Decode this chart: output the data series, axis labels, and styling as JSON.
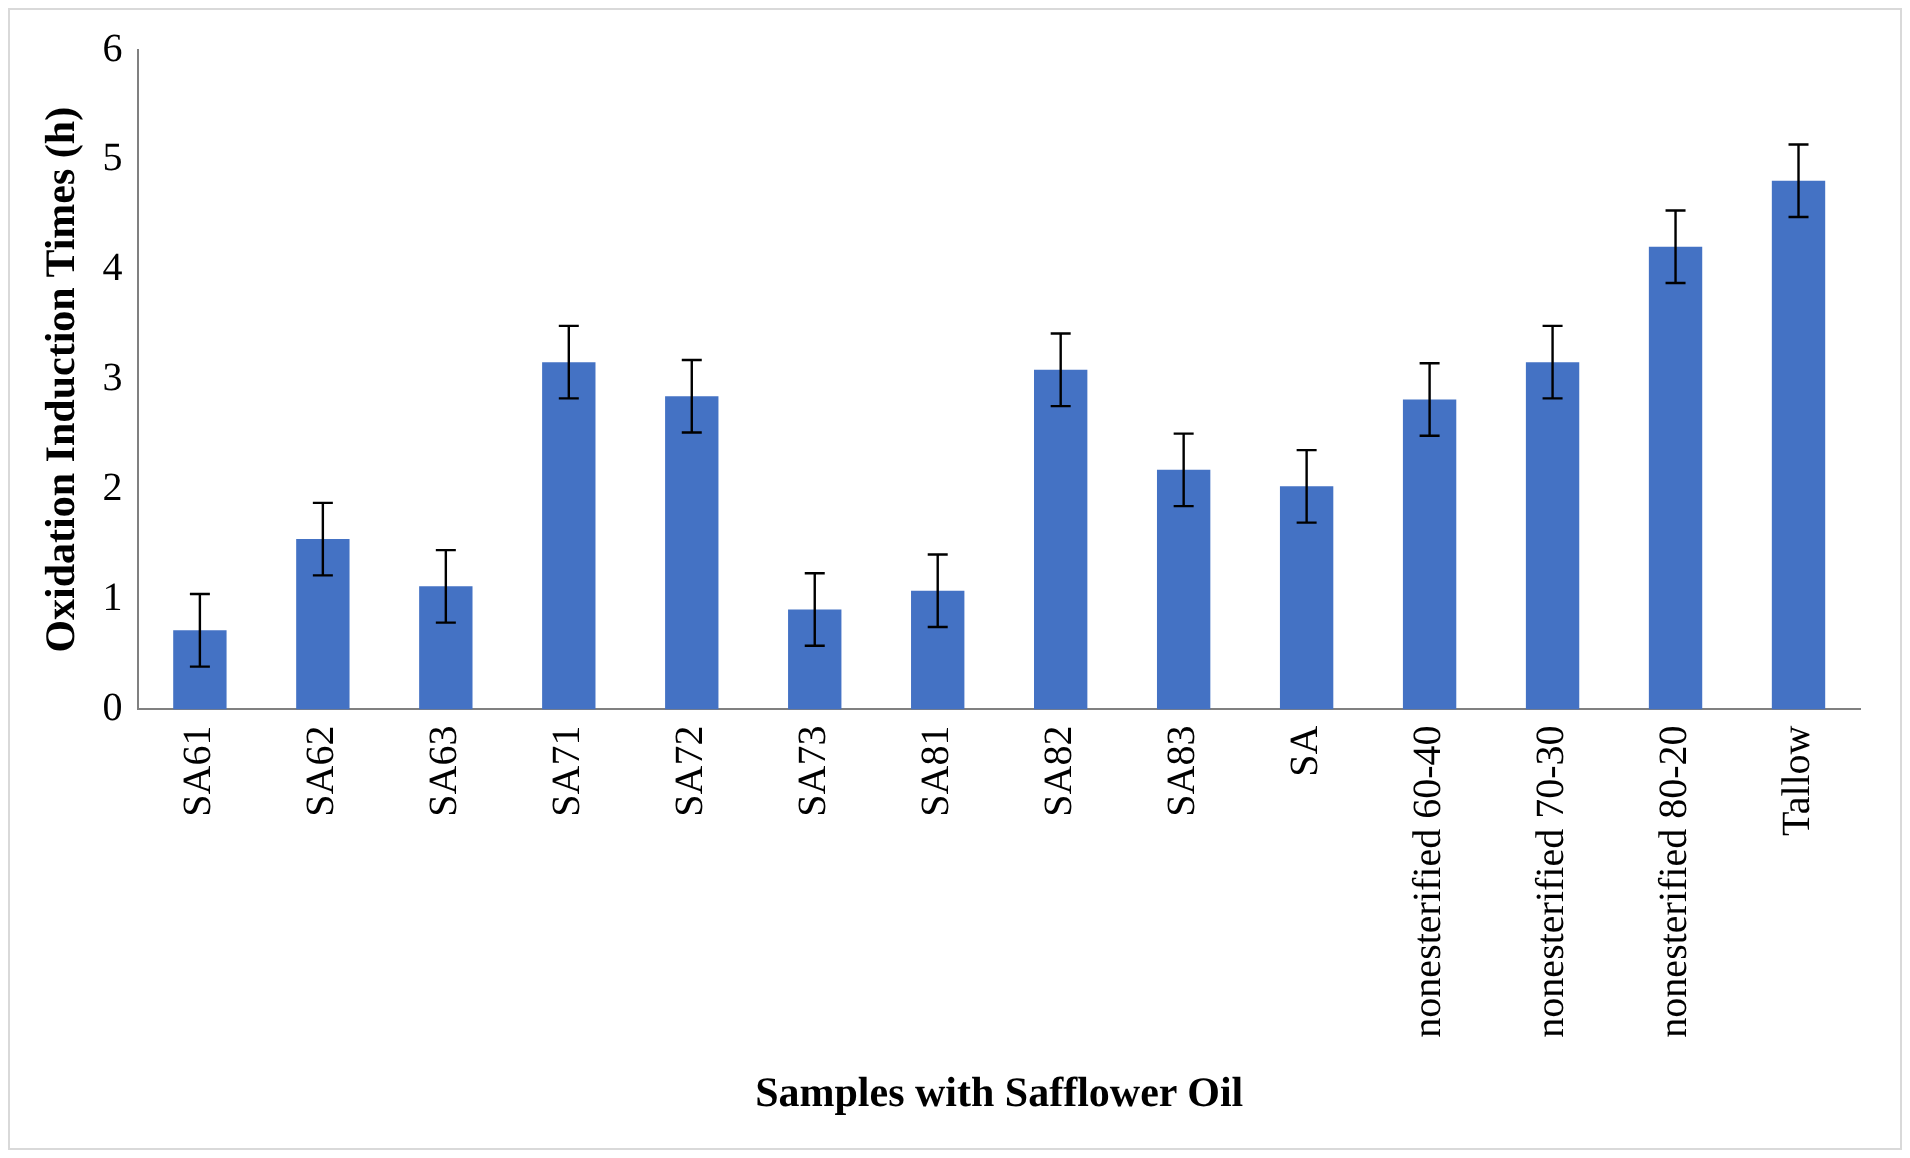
{
  "chart_data": {
    "type": "bar",
    "xlabel": "Samples with Safflower Oil",
    "ylabel": "Oxidation Induction Times (h)",
    "categories": [
      "SA61",
      "SA62",
      "SA63",
      "SA71",
      "SA72",
      "SA73",
      "SA81",
      "SA82",
      "SA83",
      "SA",
      "nonesterified 60-40",
      "nonesterified 70-30",
      "nonesterified 80-20",
      "Tallow"
    ],
    "values": [
      0.72,
      1.55,
      1.12,
      3.16,
      2.85,
      0.91,
      1.08,
      3.09,
      2.18,
      2.03,
      2.82,
      3.16,
      4.21,
      4.81
    ],
    "errors": [
      0.33,
      0.33,
      0.33,
      0.33,
      0.33,
      0.33,
      0.33,
      0.33,
      0.33,
      0.33,
      0.33,
      0.33,
      0.33,
      0.33
    ],
    "color": "#4472c4",
    "ylim": [
      0,
      6
    ],
    "yticks": [
      0,
      1,
      2,
      3,
      4,
      5,
      6
    ],
    "grid": false,
    "legend": false
  }
}
